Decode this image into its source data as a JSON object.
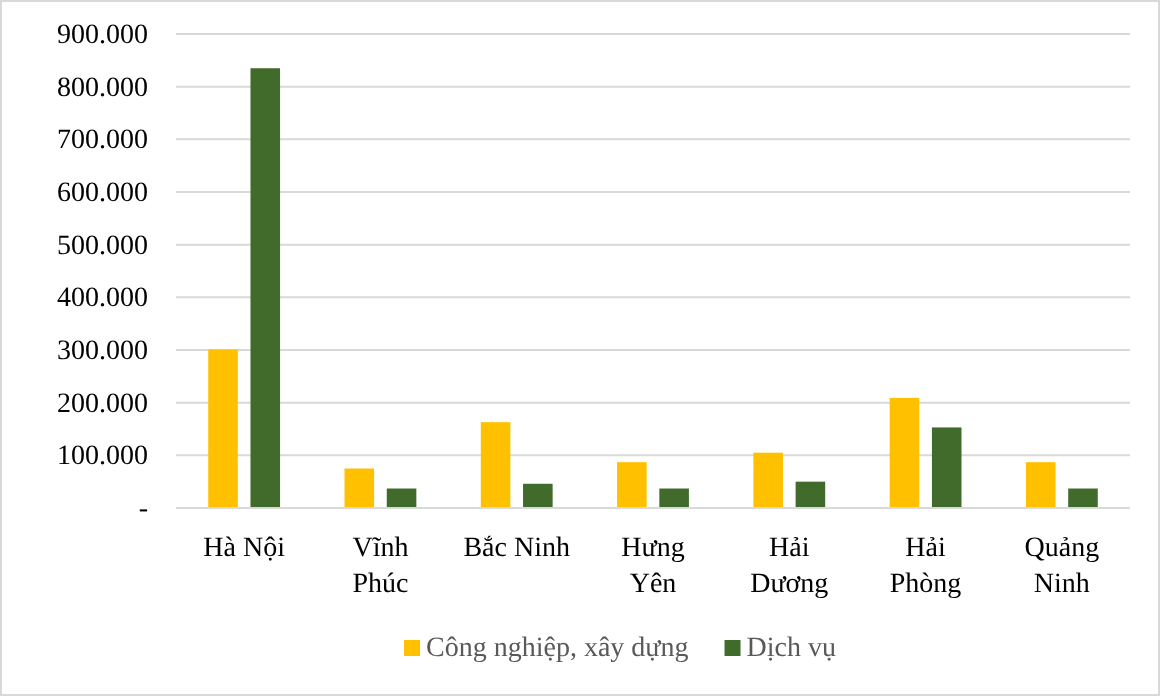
{
  "chart_data": {
    "type": "bar",
    "categories": [
      "Hà Nội",
      "Vĩnh Phúc",
      "Bắc Ninh",
      "Hưng Yên",
      "Hải Dương",
      "Hải Phòng",
      "Quảng Ninh"
    ],
    "series": [
      {
        "name": "Công nghiệp, xây dựng",
        "color": "#ffc000",
        "values": [
          301000,
          75000,
          163000,
          87000,
          105000,
          209000,
          87000
        ]
      },
      {
        "name": "Dịch vụ",
        "color": "#416b2b",
        "values": [
          835000,
          37000,
          46000,
          37000,
          50000,
          153000,
          37000
        ]
      }
    ],
    "ylim": [
      0,
      900000
    ],
    "yticks": [
      {
        "value": 0,
        "label": "-"
      },
      {
        "value": 100000,
        "label": "100.000"
      },
      {
        "value": 200000,
        "label": "200.000"
      },
      {
        "value": 300000,
        "label": "300.000"
      },
      {
        "value": 400000,
        "label": "400.000"
      },
      {
        "value": 500000,
        "label": "500.000"
      },
      {
        "value": 600000,
        "label": "600.000"
      },
      {
        "value": 700000,
        "label": "700.000"
      },
      {
        "value": 800000,
        "label": "800.000"
      },
      {
        "value": 900000,
        "label": "900.000"
      }
    ],
    "grid": "y",
    "legend": "bottom"
  }
}
